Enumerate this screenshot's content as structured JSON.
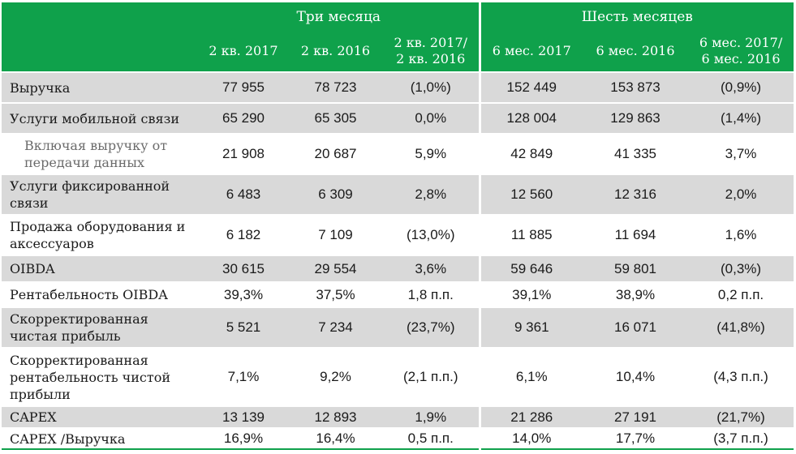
{
  "header": {
    "group_three_months": "Три месяца",
    "group_six_months": "Шесть месяцев",
    "col_q2_2017": "2 кв. 2017",
    "col_q2_2016": "2 кв. 2016",
    "col_q_change_line1": "2 кв. 2017/",
    "col_q_change_line2": "2 кв. 2016",
    "col_6m_2017": "6 мес. 2017",
    "col_6m_2016": "6 мес. 2016",
    "col_6m_change_line1": "6 мес. 2017/",
    "col_6m_change_line2": "6 мес. 2016"
  },
  "rows": [
    {
      "label_line1": "Выручка",
      "label_line2": "",
      "label_line3": "",
      "q2_2017": "77 955",
      "q2_2016": "78 723",
      "q_change": "(1,0%)",
      "h1_2017": "152 449",
      "h1_2016": "153 873",
      "h_change": "(0,9%)"
    },
    {
      "label_line1": "Услуги мобильной связи",
      "label_line2": "",
      "label_line3": "",
      "q2_2017": "65 290",
      "q2_2016": "65 305",
      "q_change": "0,0%",
      "h1_2017": "128 004",
      "h1_2016": "129 863",
      "h_change": "(1,4%)"
    },
    {
      "label_line1": "Включая выручку от",
      "label_line2": "передачи данных",
      "label_line3": "",
      "q2_2017": "21 908",
      "q2_2016": "20 687",
      "q_change": "5,9%",
      "h1_2017": "42 849",
      "h1_2016": "41 335",
      "h_change": "3,7%"
    },
    {
      "label_line1": "Услуги фиксированной",
      "label_line2": "связи",
      "label_line3": "",
      "q2_2017": "6 483",
      "q2_2016": "6 309",
      "q_change": "2,8%",
      "h1_2017": "12 560",
      "h1_2016": "12 316",
      "h_change": "2,0%"
    },
    {
      "label_line1": "Продажа оборудования и",
      "label_line2": "аксессуаров",
      "label_line3": "",
      "q2_2017": "6 182",
      "q2_2016": "7 109",
      "q_change": "(13,0%)",
      "h1_2017": "11 885",
      "h1_2016": "11 694",
      "h_change": "1,6%"
    },
    {
      "label_line1": "OIBDA",
      "label_line2": "",
      "label_line3": "",
      "q2_2017": "30 615",
      "q2_2016": "29 554",
      "q_change": "3,6%",
      "h1_2017": "59 646",
      "h1_2016": "59 801",
      "h_change": "(0,3%)"
    },
    {
      "label_line1": "Рентабельность OIBDA",
      "label_line2": "",
      "label_line3": "",
      "q2_2017": "39,3%",
      "q2_2016": "37,5%",
      "q_change": "1,8 п.п.",
      "h1_2017": "39,1%",
      "h1_2016": "38,9%",
      "h_change": "0,2 п.п."
    },
    {
      "label_line1": "Скорректированная",
      "label_line2": "чистая прибыль",
      "label_line3": "",
      "q2_2017": "5 521",
      "q2_2016": "7 234",
      "q_change": "(23,7%)",
      "h1_2017": "9 361",
      "h1_2016": "16 071",
      "h_change": "(41,8%)"
    },
    {
      "label_line1": "Скорректированная",
      "label_line2": "рентабельность чистой",
      "label_line3": "прибыли",
      "q2_2017": "7,1%",
      "q2_2016": "9,2%",
      "q_change": "(2,1 п.п.)",
      "h1_2017": "6,1%",
      "h1_2016": "10,4%",
      "h_change": "(4,3 п.п.)"
    },
    {
      "label_line1": "CAPEX",
      "label_line2": "",
      "label_line3": "",
      "q2_2017": "13 139",
      "q2_2016": "12 893",
      "q_change": "1,9%",
      "h1_2017": "21 286",
      "h1_2016": "27 191",
      "h_change": "(21,7%)"
    },
    {
      "label_line1": "CAPEX /Выручка",
      "label_line2": "",
      "label_line3": "",
      "q2_2017": "16,9%",
      "q2_2016": "16,4%",
      "q_change": "0,5 п.п.",
      "h1_2017": "14,0%",
      "h1_2016": "17,7%",
      "h_change": "(3,7 п.п.)"
    }
  ]
}
